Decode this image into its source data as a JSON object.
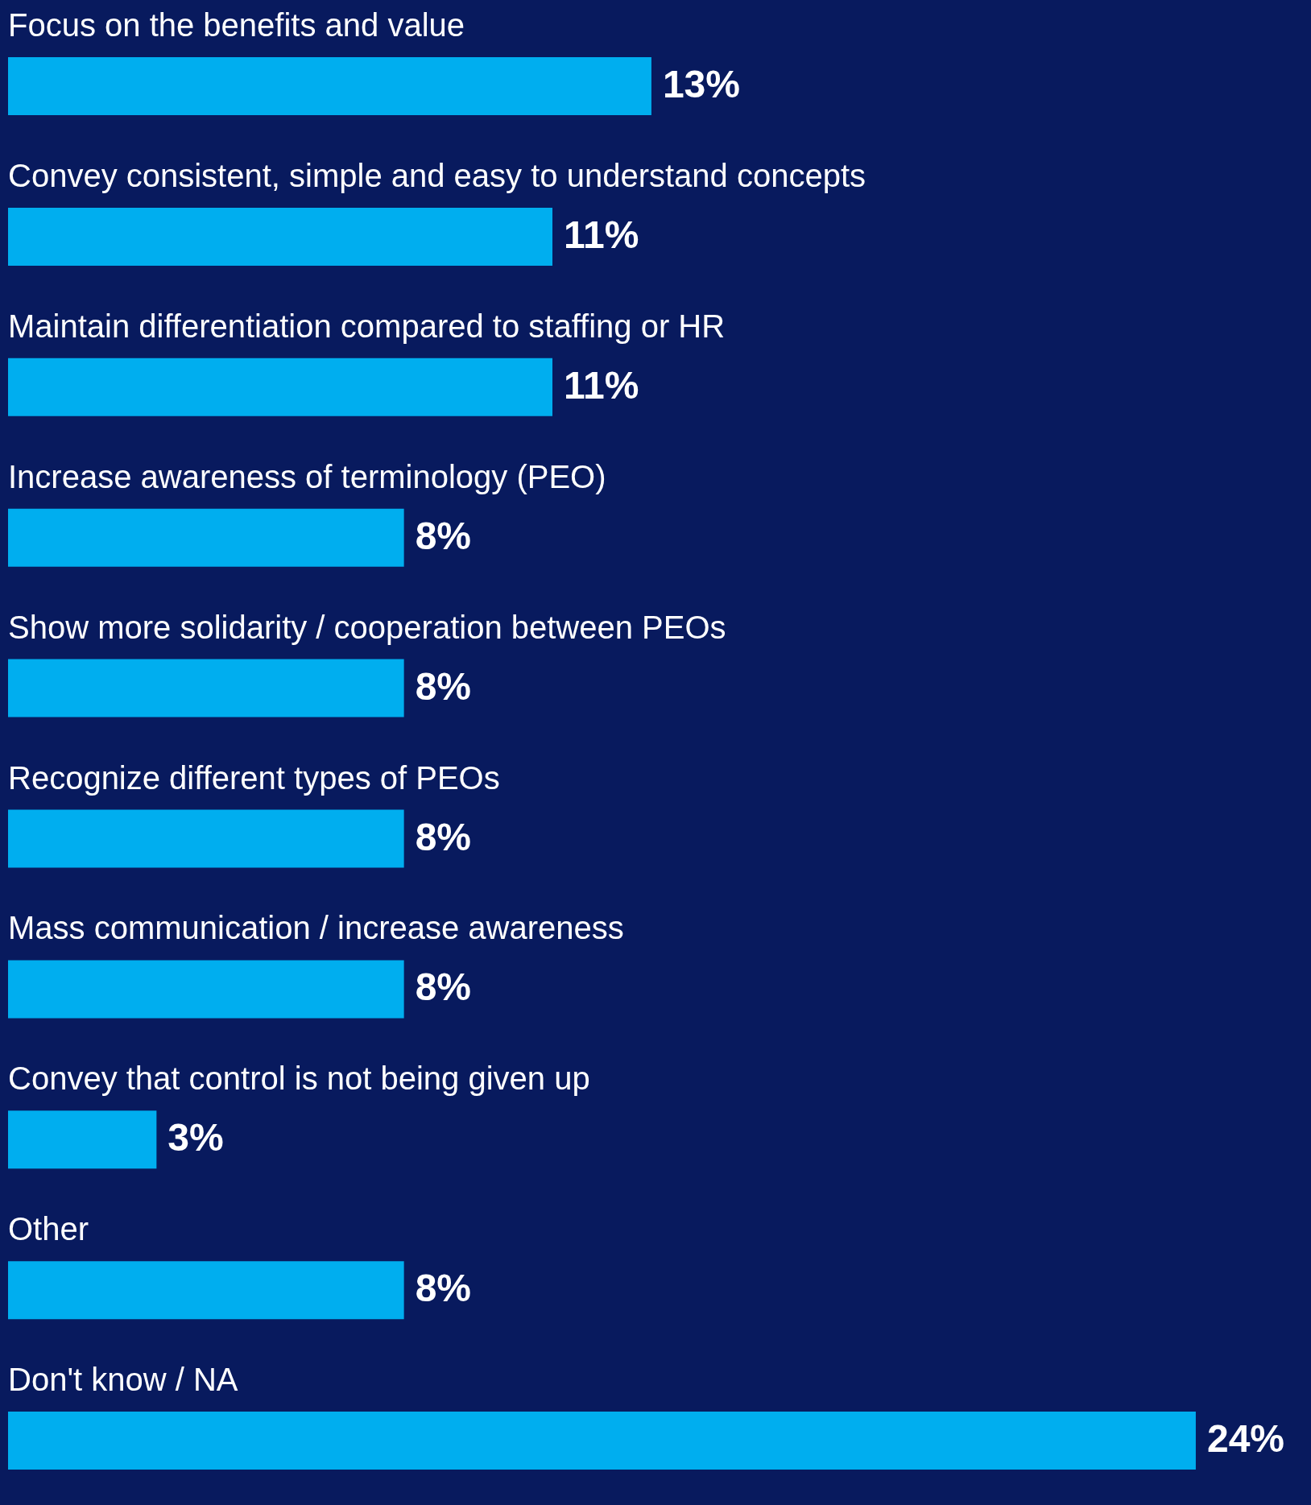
{
  "chart_data": {
    "type": "bar",
    "orientation": "horizontal",
    "categories": [
      "Focus on the benefits and value",
      "Convey consistent, simple and easy to understand concepts",
      "Maintain differentiation compared to staffing or HR",
      "Increase awareness of terminology (PEO)",
      "Show more solidarity / cooperation between PEOs",
      "Recognize different types of PEOs",
      "Mass communication / increase awareness",
      "Convey that control is not being given up",
      "Other",
      "Don't know / NA"
    ],
    "values": [
      13,
      11,
      11,
      8,
      8,
      8,
      8,
      3,
      8,
      24
    ],
    "value_labels": [
      "13%",
      "11%",
      "11%",
      "8%",
      "8%",
      "8%",
      "8%",
      "3%",
      "8%",
      "24%"
    ],
    "color": "#00aeef"
  }
}
